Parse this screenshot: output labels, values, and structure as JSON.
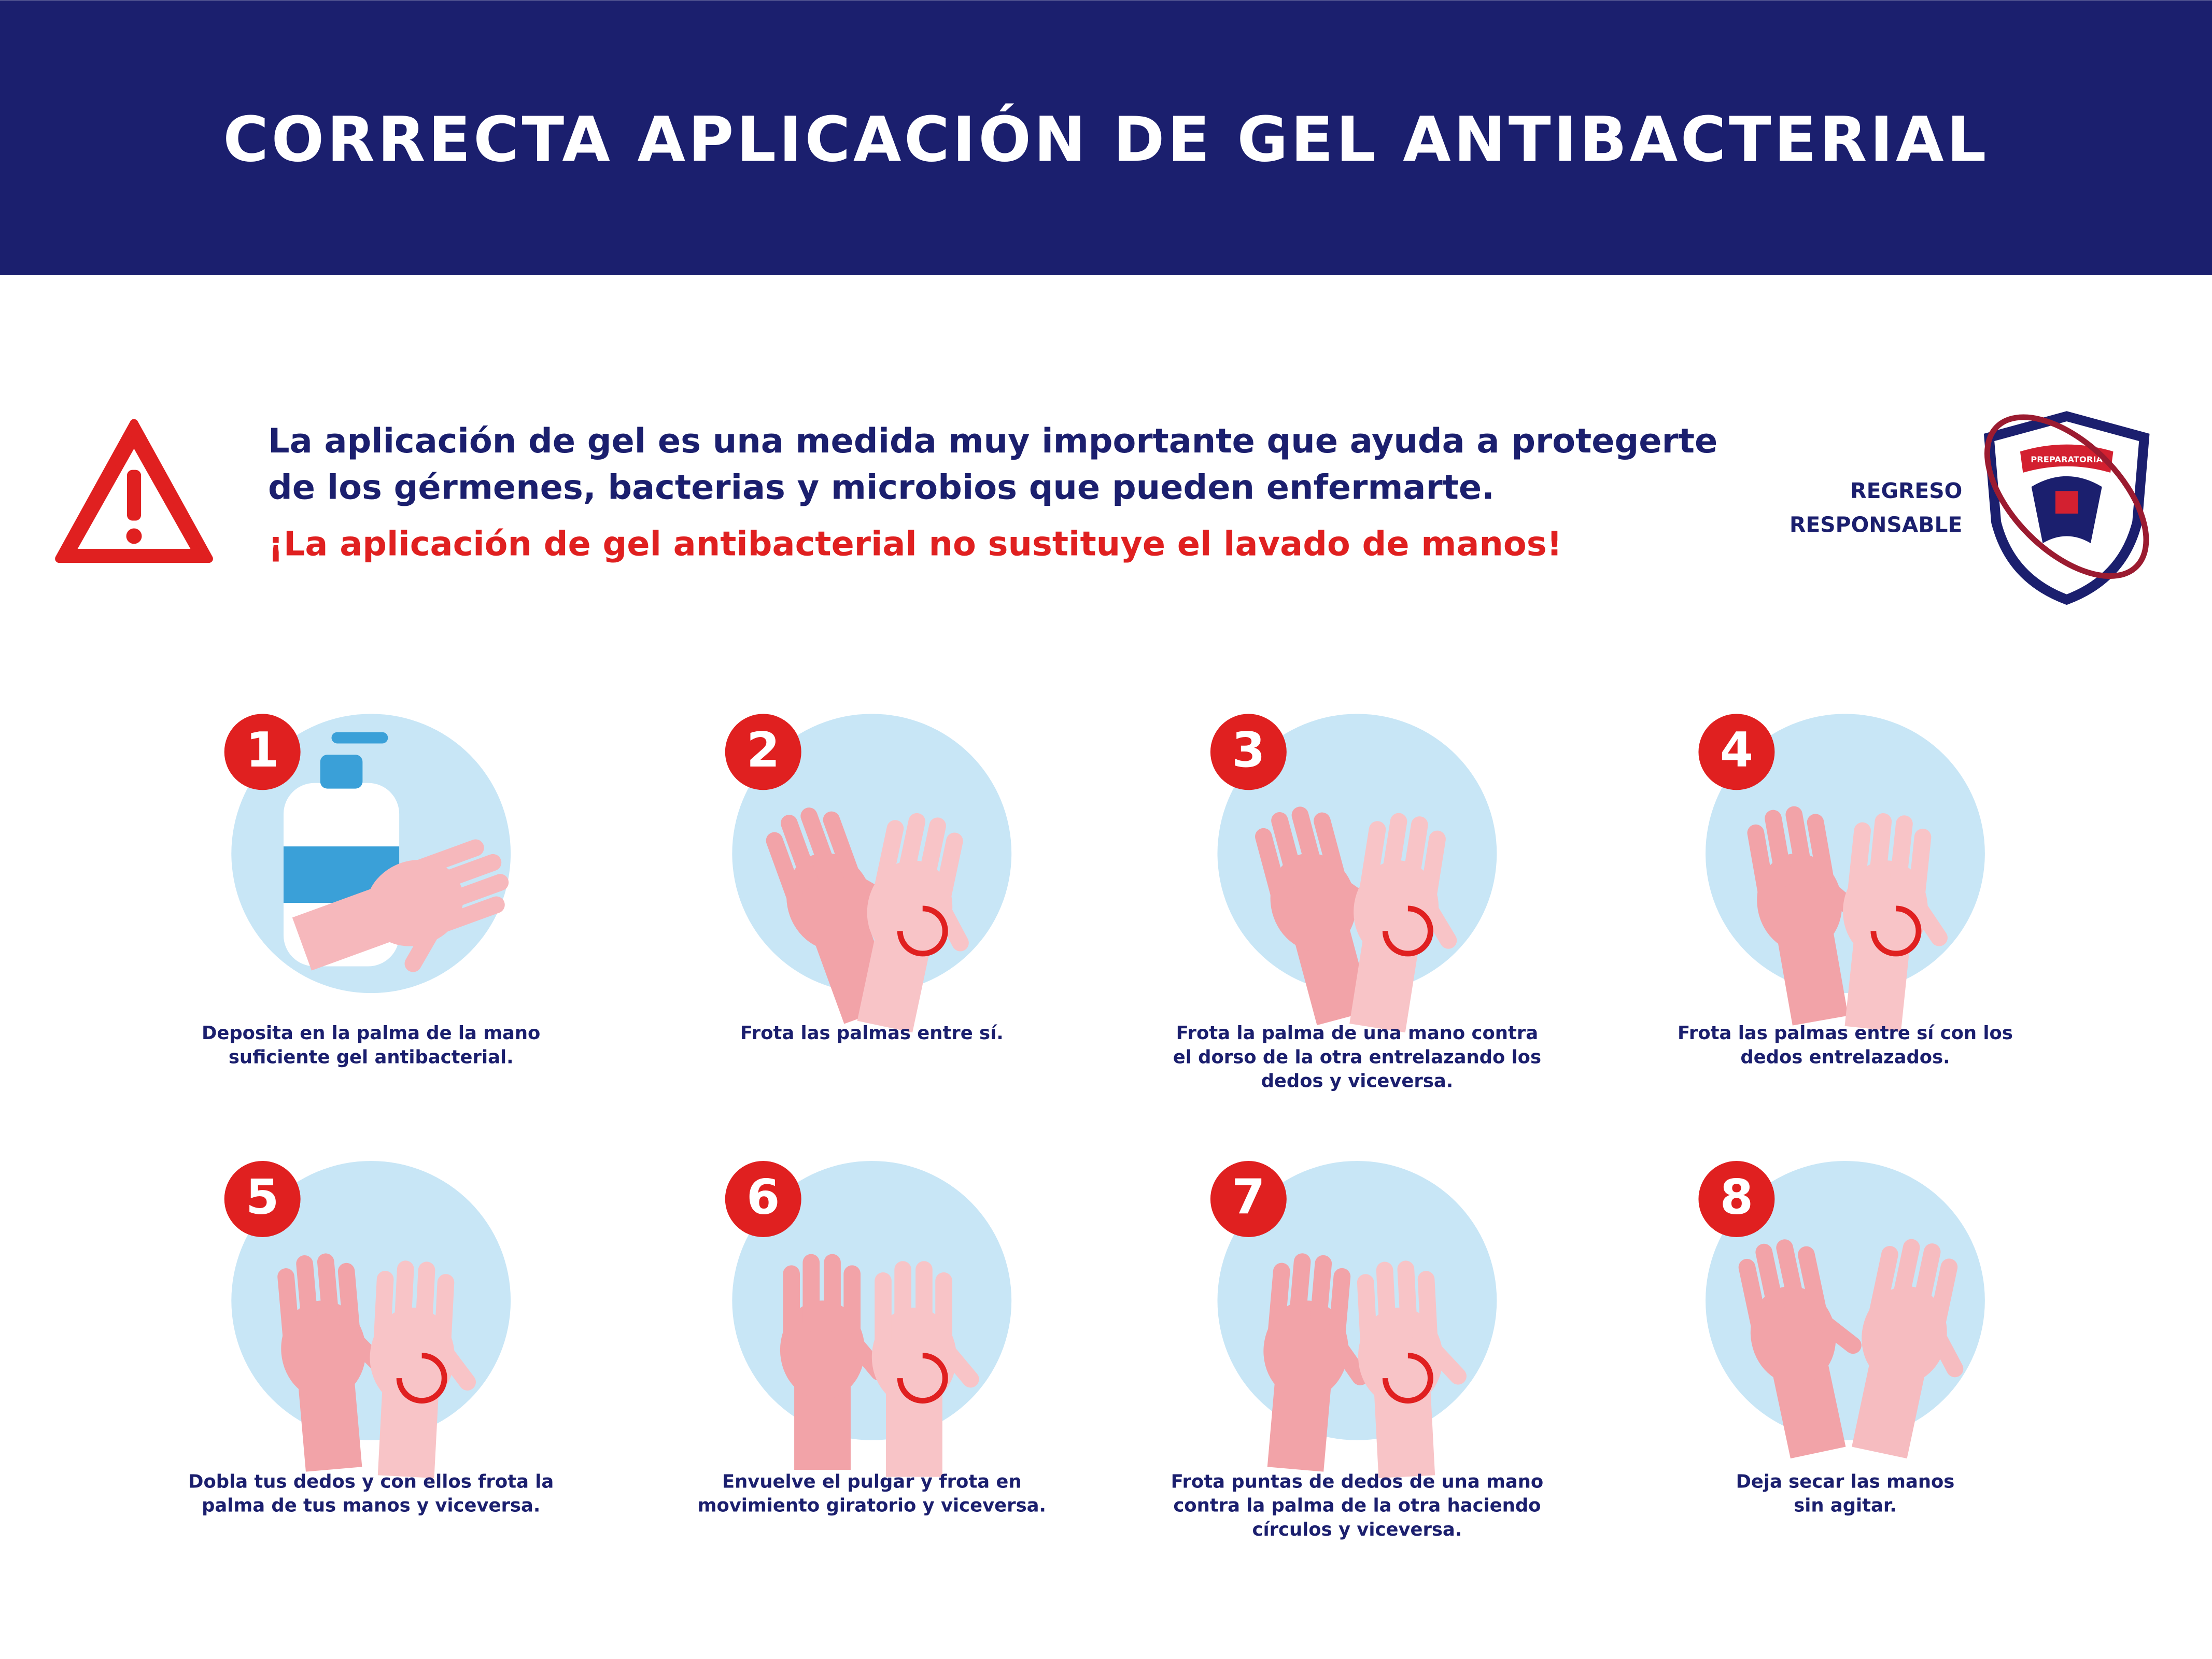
{
  "header": {
    "title": "CORRECTA APLICACIÓN DE GEL ANTIBACTERIAL"
  },
  "intro": {
    "lines": [
      "La aplicación de gel es una medida muy importante que ayuda a protegerte",
      "de los gérmenes, bacterias y microbios que pueden enfermarte."
    ],
    "warning": "¡La aplicación de gel antibacterial no sustituye el lavado de manos!"
  },
  "logo": {
    "lines": [
      "REGRESO",
      "RESPONSABLE"
    ],
    "badge": "PREPARATORIA"
  },
  "steps": [
    {
      "number": "1",
      "lines": [
        "Deposita en la palma de la mano",
        "suficiente gel antibacterial."
      ]
    },
    {
      "number": "2",
      "lines": [
        "Frota las palmas entre sí."
      ]
    },
    {
      "number": "3",
      "lines": [
        "Frota la palma de una mano contra",
        "el dorso de la otra entrelazando los",
        "dedos y viceversa."
      ]
    },
    {
      "number": "4",
      "lines": [
        "Frota las palmas entre sí con los",
        "dedos entrelazados."
      ]
    },
    {
      "number": "5",
      "lines": [
        "Dobla tus dedos y con ellos frota la",
        "palma de tus manos y viceversa."
      ]
    },
    {
      "number": "6",
      "lines": [
        "Envuelve el pulgar y frota en",
        "movimiento giratorio y viceversa."
      ]
    },
    {
      "number": "7",
      "lines": [
        "Frota puntas de dedos de una mano",
        "contra la palma de la otra haciendo",
        "círculos y viceversa."
      ]
    },
    {
      "number": "8",
      "lines": [
        "Deja secar las manos",
        "sin agitar."
      ]
    }
  ]
}
